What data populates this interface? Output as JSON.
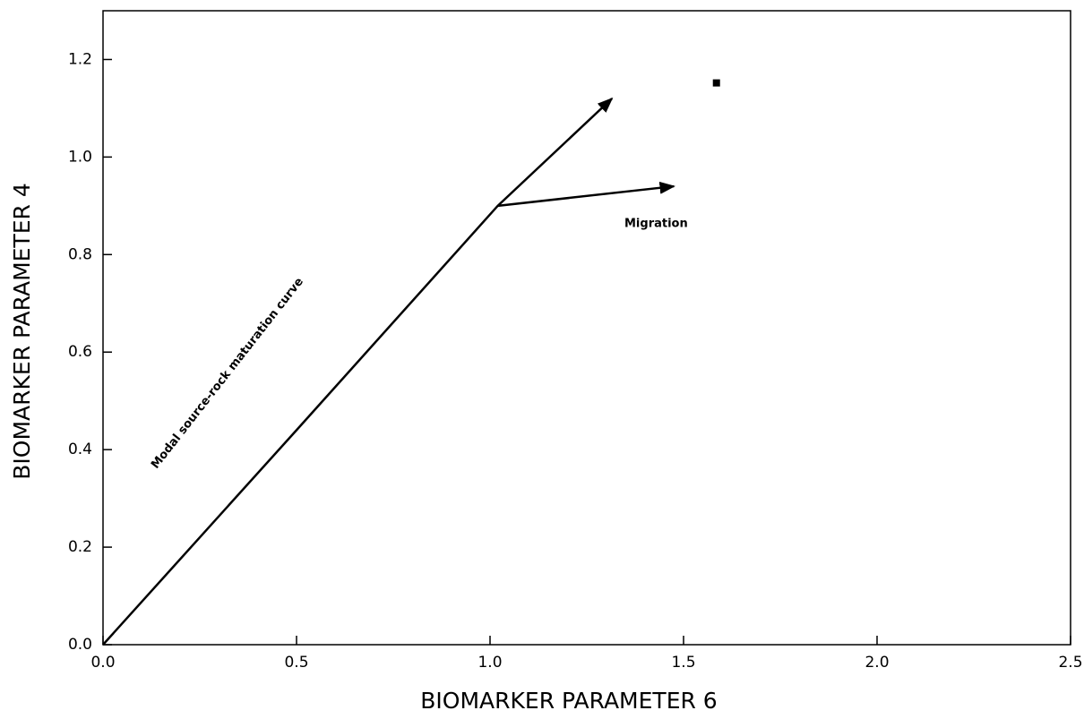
{
  "chart_data": {
    "type": "line",
    "x_label": "BIOMARKER PARAMETER 6",
    "y_label": "BIOMARKER PARAMETER 4",
    "xlim": [
      0,
      2.5
    ],
    "ylim": [
      0,
      1.3
    ],
    "xticks": [
      {
        "value": 0,
        "label": "0.0"
      },
      0.5,
      {
        "value": 1,
        "label": "1.0"
      },
      1.5,
      {
        "value": 2,
        "label": "2.0"
      },
      2.5
    ],
    "yticks": [
      {
        "value": 0,
        "label": "0.0"
      },
      0.2,
      0.4,
      0.6,
      0.8,
      {
        "value": 1,
        "label": "1.0"
      },
      1.2
    ],
    "series": [
      {
        "color": "#000000",
        "arrow": true,
        "x": [
          0,
          0.5,
          1.02,
          1.315
        ],
        "values": [
          0,
          0.44,
          0.9,
          1.12
        ]
      },
      {
        "color": "#000000",
        "arrow": true,
        "x": [
          1.02,
          1.475
        ],
        "values": [
          0.9,
          0.94
        ]
      },
      {
        "color": "#000000",
        "marker": "square",
        "x": [
          1.585
        ],
        "values": [
          1.152
        ]
      }
    ],
    "annotations": [
      "Modal source-rock maturation curve",
      "Migration"
    ]
  }
}
